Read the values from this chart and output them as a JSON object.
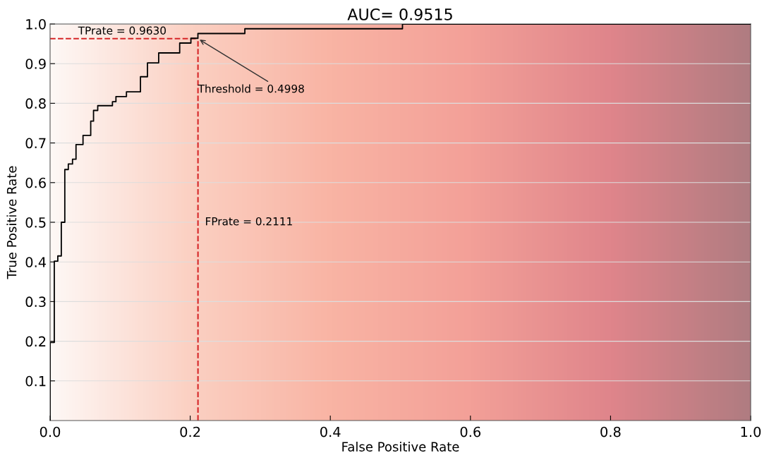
{
  "chart_data": {
    "type": "step",
    "title": "AUC= 0.9515",
    "xlabel": "False Positive Rate",
    "ylabel": "True Positive Rate",
    "x": [
      0,
      0,
      0.006,
      0.011,
      0.016,
      0.021,
      0.026,
      0.032,
      0.037,
      0.047,
      0.058,
      0.062,
      0.068,
      0.089,
      0.094,
      0.109,
      0.129,
      0.139,
      0.155,
      0.185,
      0.201,
      0.211,
      0.278,
      0.503,
      1.0
    ],
    "series": [
      {
        "color": "#000000",
        "values": [
          0,
          0.197,
          0.402,
          0.415,
          0.5,
          0.633,
          0.647,
          0.659,
          0.696,
          0.719,
          0.755,
          0.782,
          0.794,
          0.804,
          0.817,
          0.829,
          0.867,
          0.902,
          0.927,
          0.952,
          0.964,
          0.976,
          0.988,
          1.0,
          1.0
        ]
      }
    ],
    "xlim": [
      0,
      1
    ],
    "ylim": [
      0,
      1
    ],
    "xticks": [
      {
        "value": 0,
        "label": "0.0"
      },
      0.2,
      0.4,
      0.6,
      0.8,
      {
        "value": 1,
        "label": "1.0"
      }
    ],
    "yticks": [
      0.1,
      0.2,
      0.3,
      0.4,
      0.5,
      0.6,
      0.7,
      0.8,
      0.9,
      {
        "value": 1,
        "label": "1.0"
      }
    ],
    "grid": "y",
    "line_style": "solid",
    "marker": "none",
    "ref_lines": [
      {
        "axis": "y",
        "value": 0.963,
        "label": "TPrate = 0.9630",
        "color": "#d62728",
        "line_style": "dashed"
      },
      {
        "axis": "x",
        "value": 0.2111,
        "label": "FPrate = 0.2111",
        "color": "#d62728",
        "line_style": "dashed"
      }
    ],
    "annotations": [
      {
        "text": "Threshold = 0.4998",
        "x": 0.2111,
        "y": 0.963
      }
    ]
  }
}
